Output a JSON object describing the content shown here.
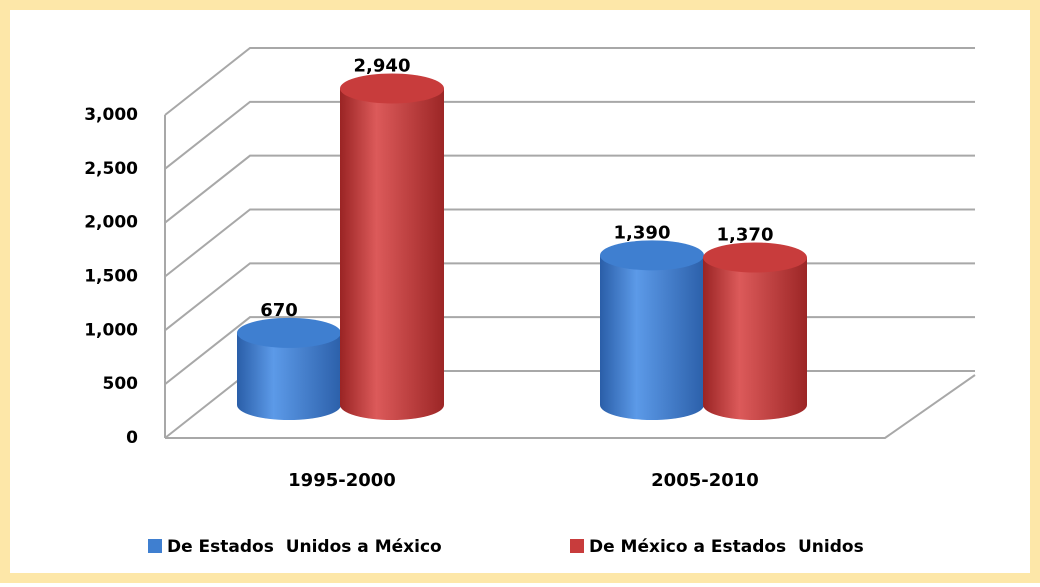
{
  "chart_data": {
    "type": "bar3d",
    "categories": [
      "1995-2000",
      "2005-2010"
    ],
    "series": [
      {
        "name": "De Estados  Unidos a México",
        "color": "#3f7fd0",
        "values": [
          670,
          1390
        ],
        "value_labels": [
          "670",
          "1,390"
        ]
      },
      {
        "name": "De México a Estados  Unidos",
        "color": "#c83c3c",
        "values": [
          2940,
          1370
        ],
        "value_labels": [
          "2,940",
          "1,370"
        ]
      }
    ],
    "ylim": [
      0,
      3000
    ],
    "yticks": [
      0,
      500,
      {
        "value": 1000,
        "label": "1,000"
      },
      {
        "value": 1500,
        "label": "1,500"
      },
      {
        "value": 2000,
        "label": "2,000"
      },
      {
        "value": 2500,
        "label": "2,500"
      },
      {
        "value": 3000,
        "label": "3,000"
      }
    ],
    "grid": true,
    "legend": "bottom"
  }
}
